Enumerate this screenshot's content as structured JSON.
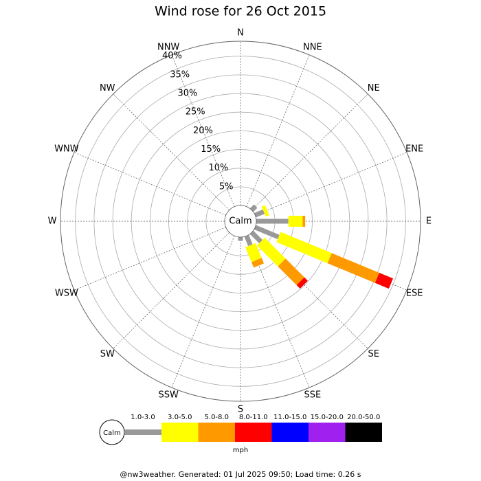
{
  "chart_data": {
    "type": "windrose",
    "title": "Wind rose for 26 Oct 2015",
    "directions": [
      "N",
      "NNE",
      "NE",
      "ENE",
      "E",
      "ESE",
      "SE",
      "SSE",
      "S",
      "SSW",
      "SW",
      "WSW",
      "W",
      "WNW",
      "NW",
      "NNW"
    ],
    "center_label": "Calm",
    "rlim": [
      0,
      44
    ],
    "rticks": [
      {
        "value": 5,
        "label": "5%"
      },
      {
        "value": 10,
        "label": "10%"
      },
      {
        "value": 15,
        "label": "15%"
      },
      {
        "value": 20,
        "label": "20%"
      },
      {
        "value": 25,
        "label": "25%"
      },
      {
        "value": 30,
        "label": "30%"
      },
      {
        "value": 35,
        "label": "35%"
      },
      {
        "value": 40,
        "label": "40%"
      }
    ],
    "series": [
      {
        "name": "1.0-3.0",
        "color": "#999999",
        "values": [
          0,
          0,
          1.5,
          2.5,
          8.6,
          6.8,
          3.5,
          2.7,
          1.0,
          0,
          0,
          0,
          0,
          0,
          0,
          0
        ]
      },
      {
        "name": "3.0-5.0",
        "color": "#ffff00",
        "values": [
          0,
          0,
          0,
          1.0,
          3.8,
          14.8,
          7.9,
          4.3,
          0,
          0,
          0,
          0,
          0,
          0,
          0,
          0
        ]
      },
      {
        "name": "5.0-8.0",
        "color": "#ff9900",
        "values": [
          0,
          0,
          0,
          0,
          0.7,
          13.8,
          7.1,
          1.6,
          0,
          0,
          0,
          0,
          0,
          0,
          0,
          0
        ]
      },
      {
        "name": "8.0-11.0",
        "color": "#ff0000",
        "values": [
          0,
          0,
          0,
          0,
          0,
          4.0,
          1.3,
          0,
          0,
          0,
          0,
          0,
          0,
          0,
          0,
          0
        ]
      },
      {
        "name": "11.0-15.0",
        "color": "#0000ff",
        "values": [
          0,
          0,
          0,
          0,
          0,
          0,
          0,
          0,
          0,
          0,
          0,
          0,
          0,
          0,
          0,
          0
        ]
      },
      {
        "name": "15.0-20.0",
        "color": "#a020f0",
        "values": [
          0,
          0,
          0,
          0,
          0,
          0,
          0,
          0,
          0,
          0,
          0,
          0,
          0,
          0,
          0,
          0
        ]
      },
      {
        "name": "20.0-50.0",
        "color": "#000000",
        "values": [
          0,
          0,
          0,
          0,
          0,
          0,
          0,
          0,
          0,
          0,
          0,
          0,
          0,
          0,
          0,
          0
        ]
      }
    ],
    "legend_unit": "mph",
    "footer": "@nw3weather. Generated: 01 Jul 2025 09:50; Load time: 0.26 s"
  }
}
